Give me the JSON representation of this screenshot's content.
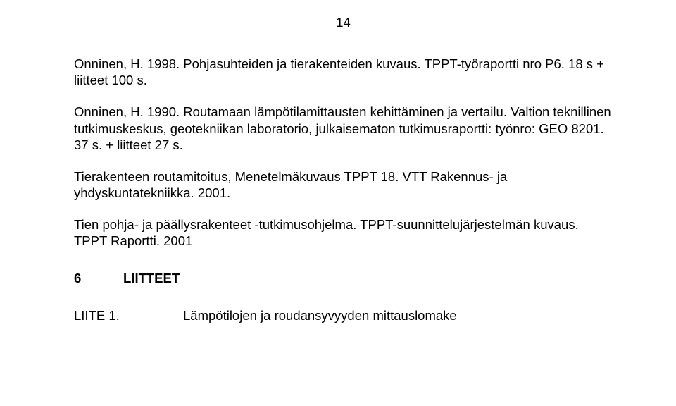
{
  "page_number": "14",
  "paragraphs": {
    "p1": "Onninen, H. 1998. Pohjasuhteiden ja tierakenteiden kuvaus. TPPT-työraportti nro P6. 18 s + liitteet 100 s.",
    "p2": "Onninen, H. 1990. Routamaan lämpötilamittausten kehittäminen ja vertailu. Valtion teknillinen tutkimuskeskus, geotekniikan laboratorio, julkaisematon tutkimusraportti: työnro: GEO 8201. 37 s. + liitteet 27 s.",
    "p3": "Tierakenteen routamitoitus, Menetelmäkuvaus TPPT 18. VTT Rakennus- ja yhdyskuntatekniikka. 2001.",
    "p4": "Tien pohja- ja päällysrakenteet -tutkimusohjelma. TPPT-suunnittelujärjestelmän kuvaus. TPPT Raportti. 2001"
  },
  "section": {
    "number": "6",
    "title": "LIITTEET"
  },
  "appendix": {
    "label": "LIITE 1.",
    "text": "Lämpötilojen  ja roudansyvyyden mittauslomake"
  },
  "style": {
    "background_color": "#ffffff",
    "text_color": "#000000",
    "font_family": "Arial",
    "body_fontsize_pt": 14,
    "heading_fontweight": "bold",
    "line_height": 1.25
  }
}
